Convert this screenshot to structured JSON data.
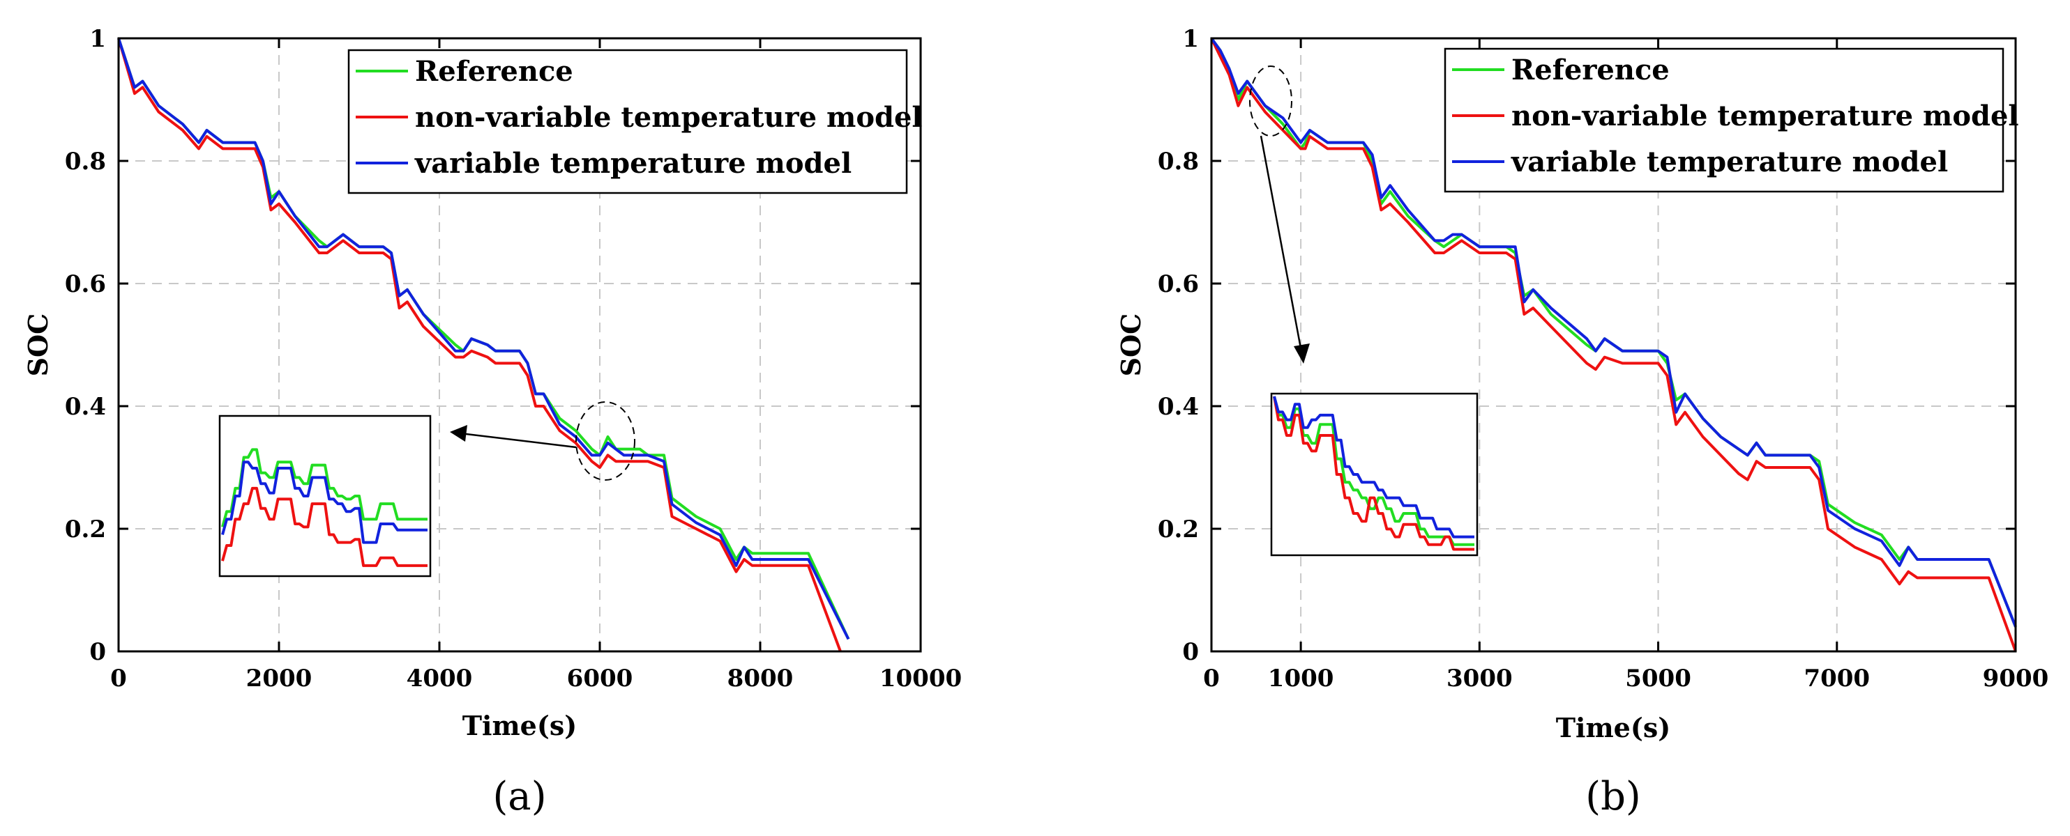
{
  "chart_data": [
    {
      "type": "line",
      "panel_label": "(a)",
      "xlabel": "Time(s)",
      "ylabel": "SOC",
      "xlim": [
        0,
        10000
      ],
      "ylim": [
        0,
        1
      ],
      "xticks": [
        0,
        2000,
        4000,
        6000,
        8000,
        10000
      ],
      "yticks": [
        0,
        0.2,
        0.4,
        0.6,
        0.8,
        1
      ],
      "xtick_labels": [
        "0",
        "2000",
        "4000",
        "6000",
        "8000",
        "10000"
      ],
      "ytick_labels": [
        "0",
        "0.2",
        "0.4",
        "0.6",
        "0.8",
        "1"
      ],
      "grid": true,
      "legend_position": "top-right",
      "series": [
        {
          "name": "Reference",
          "color": "#22dd22",
          "x": [
            0,
            200,
            300,
            500,
            800,
            1000,
            1100,
            1300,
            1700,
            1800,
            1900,
            2000,
            2200,
            2500,
            2600,
            2700,
            2800,
            3000,
            3300,
            3400,
            3500,
            3600,
            3800,
            4200,
            4300,
            4400,
            4600,
            4700,
            5000,
            5100,
            5200,
            5300,
            5500,
            5700,
            5900,
            6000,
            6100,
            6200,
            6300,
            6500,
            6600,
            6800,
            6900,
            7200,
            7500,
            7700,
            7800,
            7900,
            8600,
            9100
          ],
          "values": [
            1.0,
            0.92,
            0.93,
            0.89,
            0.86,
            0.83,
            0.85,
            0.83,
            0.83,
            0.8,
            0.74,
            0.75,
            0.71,
            0.67,
            0.66,
            0.67,
            0.68,
            0.66,
            0.66,
            0.65,
            0.58,
            0.59,
            0.55,
            0.5,
            0.49,
            0.51,
            0.5,
            0.49,
            0.49,
            0.47,
            0.42,
            0.42,
            0.38,
            0.36,
            0.33,
            0.32,
            0.35,
            0.33,
            0.33,
            0.33,
            0.32,
            0.32,
            0.25,
            0.22,
            0.2,
            0.15,
            0.17,
            0.16,
            0.16,
            0.02
          ]
        },
        {
          "name": "non-variable temperature model",
          "color": "#ee1111",
          "x": [
            0,
            200,
            300,
            500,
            800,
            1000,
            1100,
            1300,
            1700,
            1800,
            1900,
            2000,
            2200,
            2500,
            2600,
            2700,
            2800,
            3000,
            3300,
            3400,
            3500,
            3600,
            3800,
            4200,
            4300,
            4400,
            4600,
            4700,
            5000,
            5100,
            5200,
            5300,
            5500,
            5700,
            5900,
            6000,
            6100,
            6200,
            6300,
            6500,
            6600,
            6800,
            6900,
            7200,
            7500,
            7700,
            7800,
            7900,
            8600,
            9000
          ],
          "values": [
            1.0,
            0.91,
            0.92,
            0.88,
            0.85,
            0.82,
            0.84,
            0.82,
            0.82,
            0.79,
            0.72,
            0.73,
            0.7,
            0.65,
            0.65,
            0.66,
            0.67,
            0.65,
            0.65,
            0.64,
            0.56,
            0.57,
            0.53,
            0.48,
            0.48,
            0.49,
            0.48,
            0.47,
            0.47,
            0.45,
            0.4,
            0.4,
            0.36,
            0.34,
            0.31,
            0.3,
            0.32,
            0.31,
            0.31,
            0.31,
            0.31,
            0.3,
            0.22,
            0.2,
            0.18,
            0.13,
            0.15,
            0.14,
            0.14,
            0.0
          ]
        },
        {
          "name": "variable temperature model",
          "color": "#1122dd",
          "x": [
            0,
            200,
            300,
            500,
            800,
            1000,
            1100,
            1300,
            1700,
            1800,
            1900,
            2000,
            2200,
            2500,
            2600,
            2700,
            2800,
            3000,
            3300,
            3400,
            3500,
            3600,
            3800,
            4200,
            4300,
            4400,
            4600,
            4700,
            5000,
            5100,
            5200,
            5300,
            5500,
            5700,
            5900,
            6000,
            6100,
            6200,
            6300,
            6500,
            6600,
            6800,
            6900,
            7200,
            7500,
            7700,
            7800,
            7900,
            8600,
            9100
          ],
          "values": [
            1.0,
            0.92,
            0.93,
            0.89,
            0.86,
            0.83,
            0.85,
            0.83,
            0.83,
            0.8,
            0.73,
            0.75,
            0.71,
            0.66,
            0.66,
            0.67,
            0.68,
            0.66,
            0.66,
            0.65,
            0.58,
            0.59,
            0.55,
            0.49,
            0.49,
            0.51,
            0.5,
            0.49,
            0.49,
            0.47,
            0.42,
            0.42,
            0.37,
            0.35,
            0.32,
            0.32,
            0.34,
            0.33,
            0.32,
            0.32,
            0.32,
            0.31,
            0.24,
            0.21,
            0.19,
            0.14,
            0.17,
            0.15,
            0.15,
            0.02
          ]
        }
      ],
      "inset": {
        "series": [
          {
            "name": "Reference",
            "values": [
              0.3,
              0.4,
              0.55,
              0.75,
              0.8,
              0.65,
              0.62,
              0.72,
              0.72,
              0.62,
              0.58,
              0.7,
              0.7,
              0.55,
              0.5,
              0.48,
              0.5,
              0.35,
              0.35,
              0.45,
              0.45,
              0.35,
              0.35,
              0.35,
              0.35
            ]
          },
          {
            "name": "non-variable temperature model",
            "values": [
              0.08,
              0.18,
              0.35,
              0.45,
              0.55,
              0.42,
              0.35,
              0.48,
              0.48,
              0.32,
              0.3,
              0.45,
              0.45,
              0.25,
              0.2,
              0.2,
              0.22,
              0.05,
              0.05,
              0.1,
              0.1,
              0.05,
              0.05,
              0.05,
              0.05
            ]
          },
          {
            "name": "variable temperature model",
            "values": [
              0.25,
              0.35,
              0.5,
              0.72,
              0.68,
              0.58,
              0.52,
              0.68,
              0.68,
              0.55,
              0.5,
              0.62,
              0.62,
              0.48,
              0.45,
              0.4,
              0.42,
              0.2,
              0.2,
              0.32,
              0.32,
              0.28,
              0.28,
              0.28,
              0.28
            ]
          }
        ]
      }
    },
    {
      "type": "line",
      "panel_label": "(b)",
      "xlabel": "Time(s)",
      "ylabel": "SOC",
      "xlim": [
        0,
        9000
      ],
      "ylim": [
        0,
        1
      ],
      "xticks": [
        0,
        1000,
        3000,
        5000,
        7000,
        9000
      ],
      "yticks": [
        0,
        0.2,
        0.4,
        0.6,
        0.8,
        1
      ],
      "xtick_labels": [
        "0",
        "1000",
        "3000",
        "5000",
        "7000",
        "9000"
      ],
      "ytick_labels": [
        "0",
        "0.2",
        "0.4",
        "0.6",
        "0.8",
        "1"
      ],
      "grid": true,
      "legend_position": "top-right",
      "series": [
        {
          "name": "Reference",
          "color": "#22dd22",
          "x": [
            0,
            100,
            200,
            300,
            400,
            600,
            800,
            1000,
            1050,
            1100,
            1300,
            1700,
            1800,
            1900,
            2000,
            2200,
            2500,
            2600,
            2700,
            2800,
            3000,
            3300,
            3400,
            3500,
            3600,
            3800,
            4200,
            4300,
            4400,
            4600,
            4700,
            5000,
            5100,
            5200,
            5300,
            5500,
            5700,
            5900,
            6000,
            6100,
            6200,
            6500,
            6700,
            6800,
            6900,
            7200,
            7500,
            7700,
            7800,
            7900,
            8700,
            9000
          ],
          "values": [
            1.0,
            0.98,
            0.95,
            0.9,
            0.93,
            0.89,
            0.86,
            0.82,
            0.83,
            0.85,
            0.83,
            0.83,
            0.8,
            0.73,
            0.75,
            0.71,
            0.67,
            0.66,
            0.67,
            0.68,
            0.66,
            0.66,
            0.65,
            0.58,
            0.59,
            0.55,
            0.5,
            0.49,
            0.51,
            0.49,
            0.49,
            0.49,
            0.47,
            0.41,
            0.42,
            0.38,
            0.35,
            0.33,
            0.32,
            0.34,
            0.32,
            0.32,
            0.32,
            0.31,
            0.24,
            0.21,
            0.19,
            0.15,
            0.17,
            0.15,
            0.15,
            0.04
          ]
        },
        {
          "name": "non-variable temperature model",
          "color": "#ee1111",
          "x": [
            0,
            100,
            200,
            300,
            400,
            600,
            800,
            1000,
            1050,
            1100,
            1300,
            1700,
            1800,
            1900,
            2000,
            2200,
            2500,
            2600,
            2700,
            2800,
            3000,
            3300,
            3400,
            3500,
            3600,
            3800,
            4200,
            4300,
            4400,
            4600,
            4700,
            5000,
            5100,
            5200,
            5300,
            5500,
            5700,
            5900,
            6000,
            6100,
            6200,
            6500,
            6700,
            6800,
            6900,
            7200,
            7500,
            7700,
            7800,
            7900,
            8700,
            9000
          ],
          "values": [
            1.0,
            0.97,
            0.94,
            0.89,
            0.92,
            0.88,
            0.85,
            0.82,
            0.82,
            0.84,
            0.82,
            0.82,
            0.79,
            0.72,
            0.73,
            0.7,
            0.65,
            0.65,
            0.66,
            0.67,
            0.65,
            0.65,
            0.64,
            0.55,
            0.56,
            0.53,
            0.47,
            0.46,
            0.48,
            0.47,
            0.47,
            0.47,
            0.45,
            0.37,
            0.39,
            0.35,
            0.32,
            0.29,
            0.28,
            0.31,
            0.3,
            0.3,
            0.3,
            0.28,
            0.2,
            0.17,
            0.15,
            0.11,
            0.13,
            0.12,
            0.12,
            0.0
          ]
        },
        {
          "name": "variable temperature model",
          "color": "#1122dd",
          "x": [
            0,
            100,
            200,
            300,
            400,
            600,
            800,
            1000,
            1050,
            1100,
            1300,
            1700,
            1800,
            1900,
            2000,
            2200,
            2500,
            2600,
            2700,
            2800,
            3000,
            3300,
            3400,
            3500,
            3600,
            3800,
            4200,
            4300,
            4400,
            4600,
            4700,
            5000,
            5100,
            5200,
            5300,
            5500,
            5700,
            5900,
            6000,
            6100,
            6200,
            6500,
            6700,
            6800,
            6900,
            7200,
            7500,
            7700,
            7800,
            7900,
            8700,
            9000
          ],
          "values": [
            1.0,
            0.98,
            0.95,
            0.91,
            0.93,
            0.89,
            0.87,
            0.83,
            0.84,
            0.85,
            0.83,
            0.83,
            0.81,
            0.74,
            0.76,
            0.72,
            0.67,
            0.67,
            0.68,
            0.68,
            0.66,
            0.66,
            0.66,
            0.57,
            0.59,
            0.56,
            0.51,
            0.49,
            0.51,
            0.49,
            0.49,
            0.49,
            0.48,
            0.39,
            0.42,
            0.38,
            0.35,
            0.33,
            0.32,
            0.34,
            0.32,
            0.32,
            0.32,
            0.3,
            0.23,
            0.2,
            0.18,
            0.14,
            0.17,
            0.15,
            0.15,
            0.04
          ]
        }
      ],
      "inset": {
        "series": [
          {
            "name": "Reference",
            "values": [
              1.0,
              0.88,
              0.8,
              0.92,
              0.75,
              0.7,
              0.82,
              0.82,
              0.6,
              0.45,
              0.4,
              0.35,
              0.28,
              0.35,
              0.28,
              0.2,
              0.25,
              0.25,
              0.15,
              0.1,
              0.1,
              0.1,
              0.05,
              0.05,
              0.05
            ]
          },
          {
            "name": "non-variable temperature model",
            "values": [
              1.0,
              0.85,
              0.75,
              0.88,
              0.7,
              0.65,
              0.75,
              0.75,
              0.5,
              0.35,
              0.25,
              0.2,
              0.35,
              0.25,
              0.15,
              0.1,
              0.18,
              0.18,
              0.1,
              0.05,
              0.05,
              0.1,
              0.02,
              0.02,
              0.02
            ]
          },
          {
            "name": "variable temperature model",
            "values": [
              1.0,
              0.9,
              0.85,
              0.95,
              0.8,
              0.85,
              0.88,
              0.88,
              0.72,
              0.55,
              0.5,
              0.45,
              0.45,
              0.4,
              0.35,
              0.35,
              0.3,
              0.3,
              0.22,
              0.22,
              0.15,
              0.15,
              0.1,
              0.1,
              0.1
            ]
          }
        ]
      }
    }
  ]
}
